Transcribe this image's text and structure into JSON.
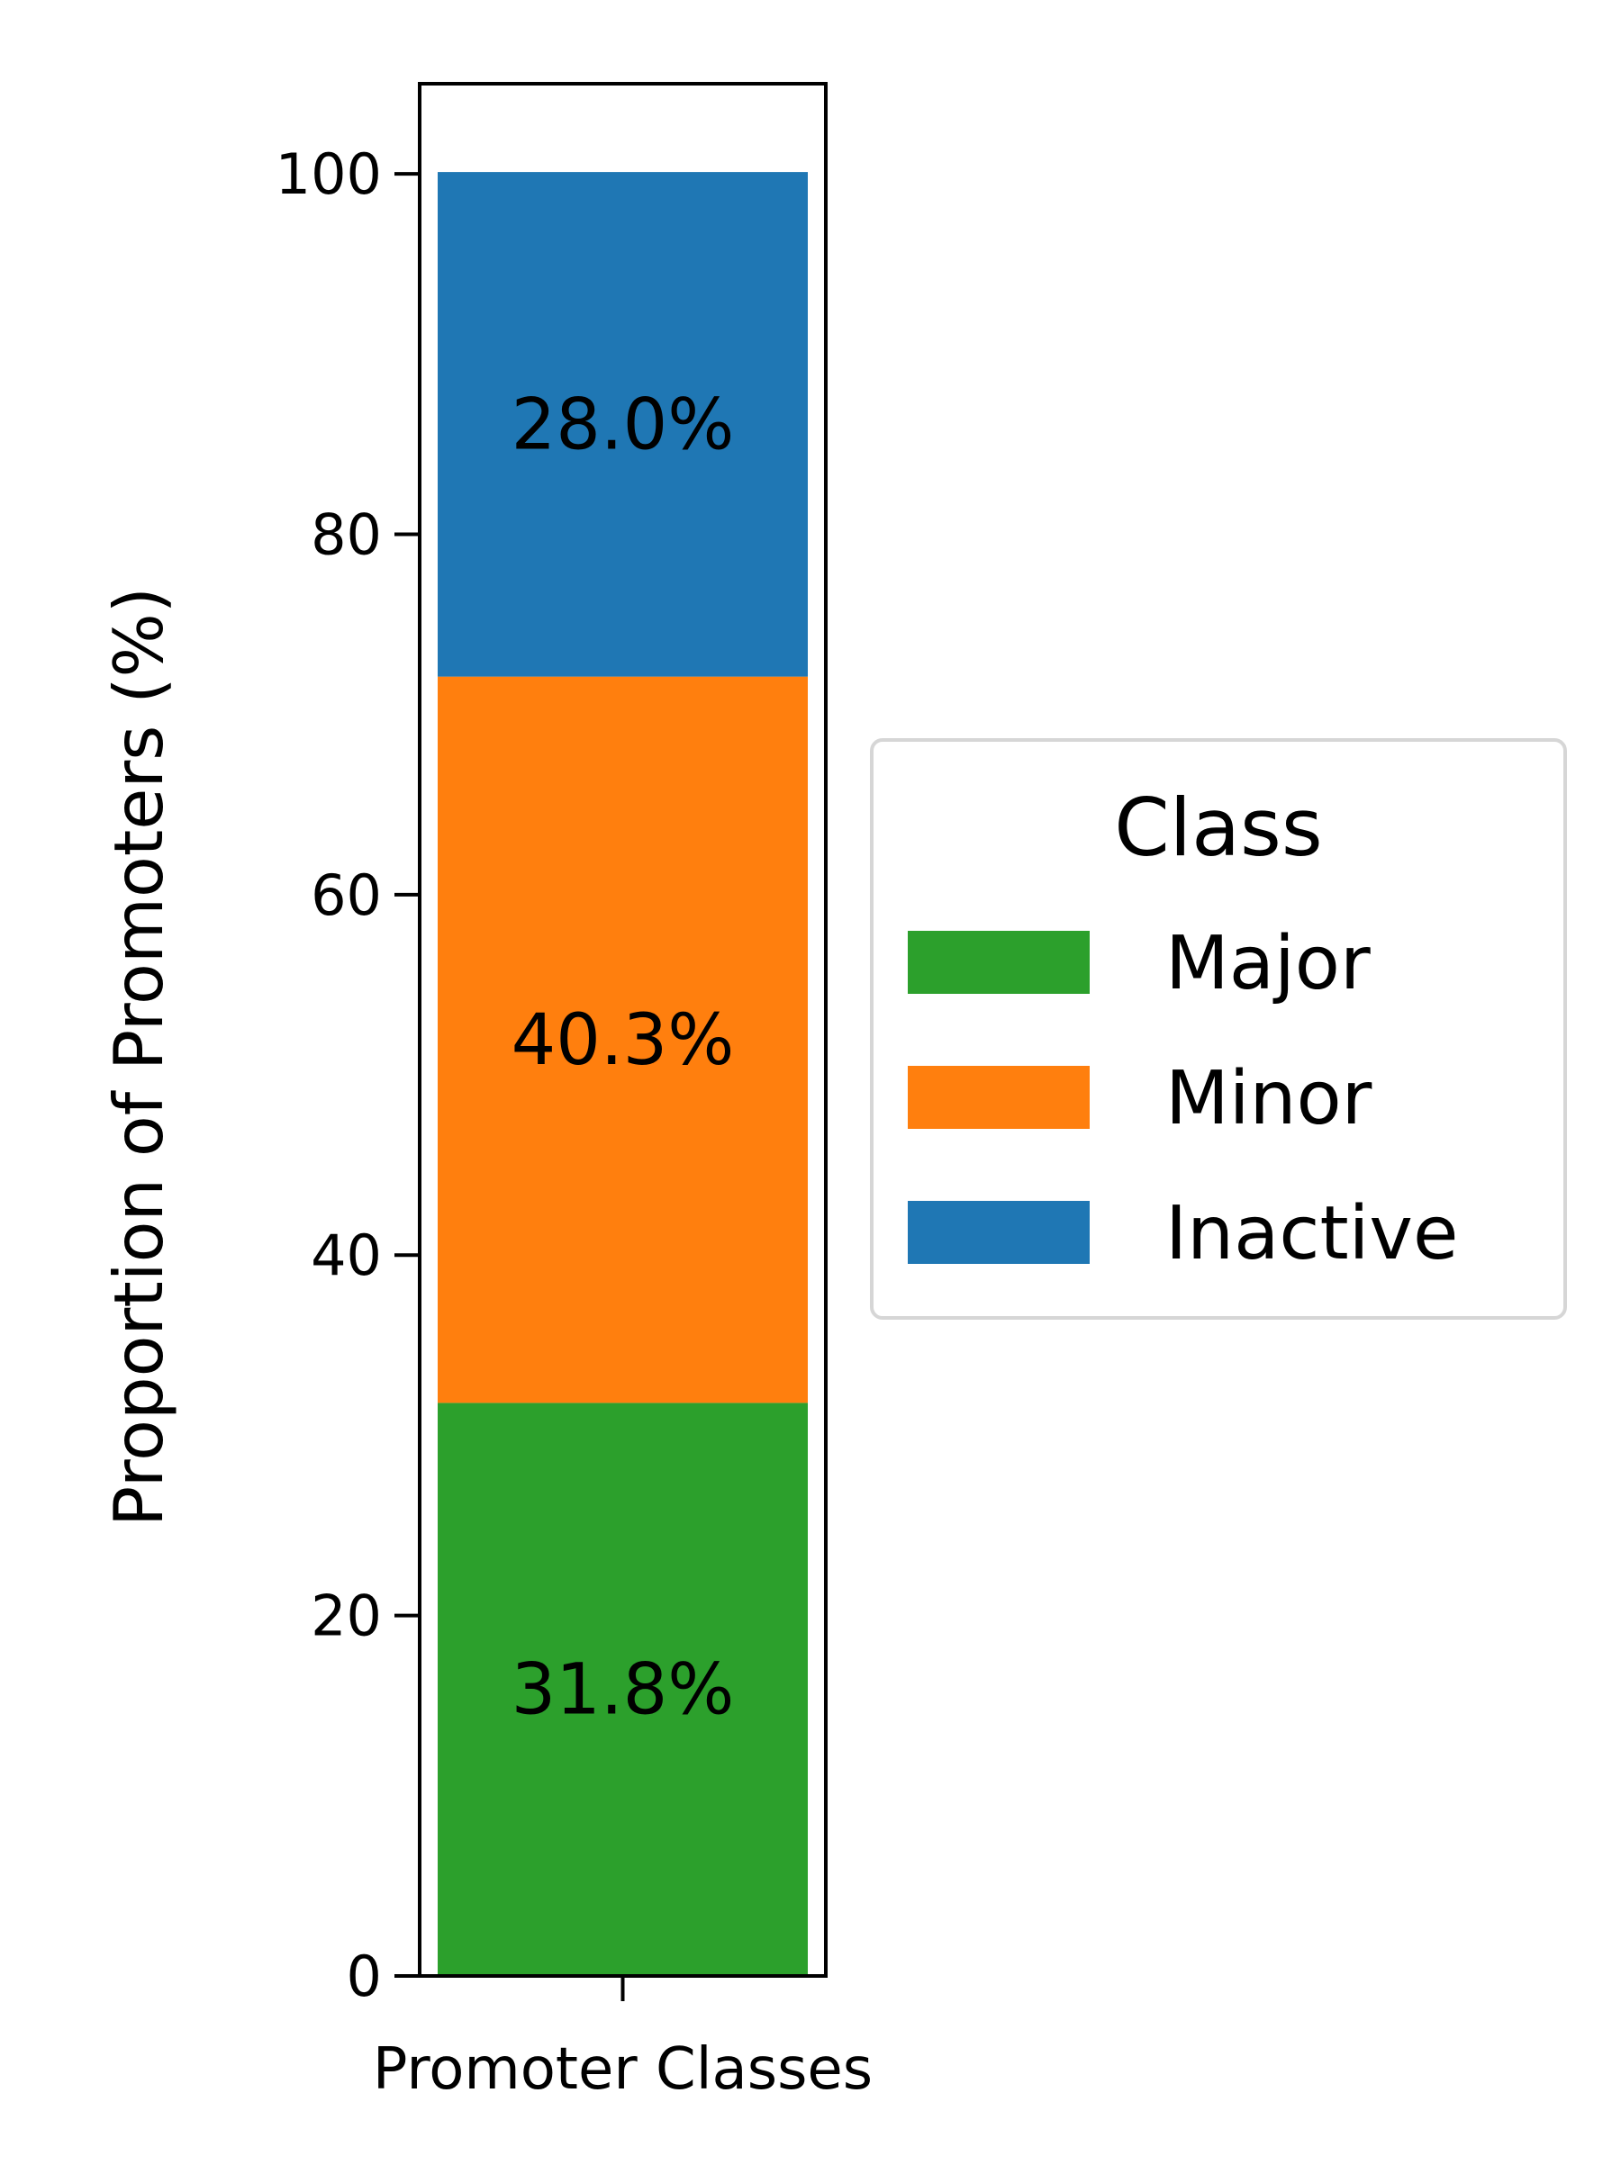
{
  "chart_data": {
    "type": "bar",
    "stacked": true,
    "categories": [
      "Promoter Classes"
    ],
    "series": [
      {
        "name": "Major",
        "values": [
          31.8
        ],
        "color": "#2ca02c",
        "label": "31.8%"
      },
      {
        "name": "Minor",
        "values": [
          40.3
        ],
        "color": "#ff7f0e",
        "label": "40.3%"
      },
      {
        "name": "Inactive",
        "values": [
          28.0
        ],
        "color": "#1f77b4",
        "label": "28.0%"
      }
    ],
    "ylabel": "Proportion of Promoters (%)",
    "xlabel": "",
    "ylim": [
      0,
      105
    ],
    "yticks": [
      0,
      20,
      40,
      60,
      80,
      100
    ],
    "grid": false,
    "legend": {
      "title": "Class",
      "placement": "center-right-outside"
    }
  }
}
